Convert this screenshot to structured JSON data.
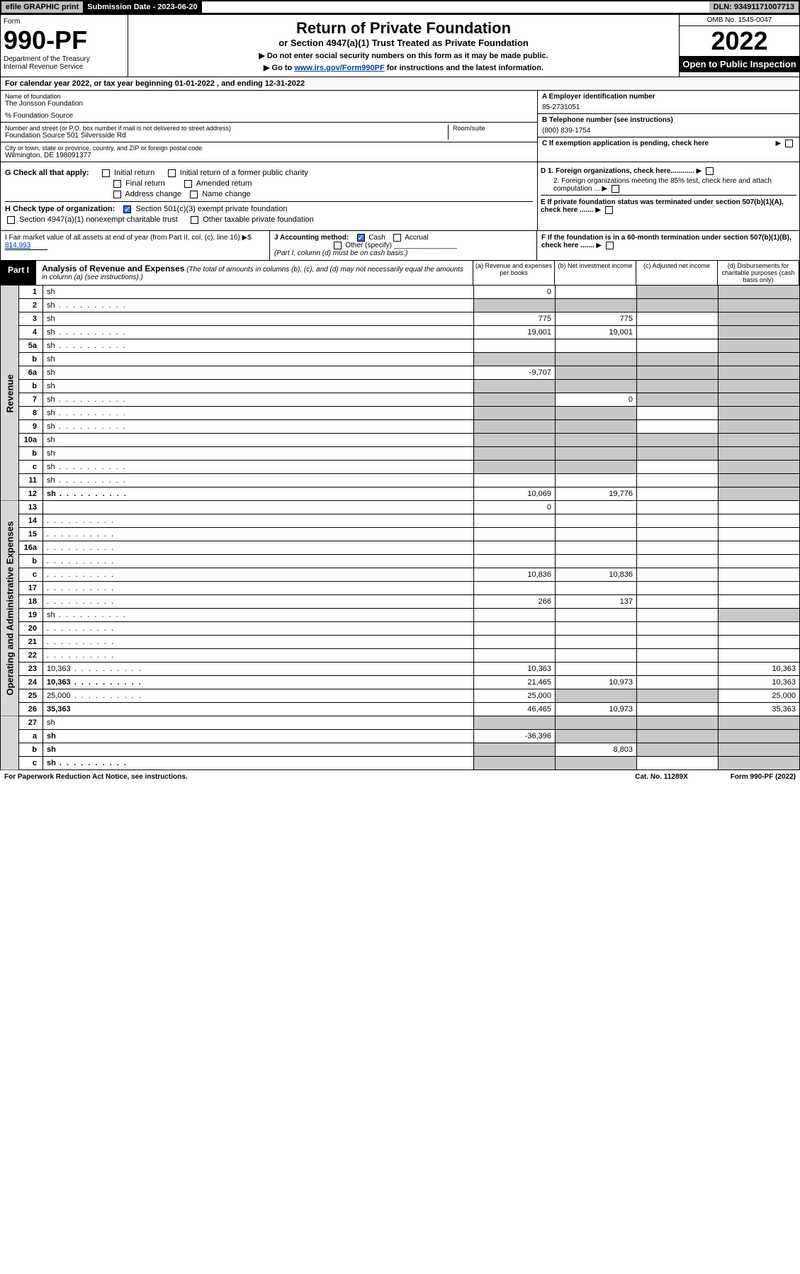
{
  "topbar": {
    "efile": "efile GRAPHIC print",
    "submission": "Submission Date - 2023-06-20",
    "dln": "DLN: 93491171007713"
  },
  "header": {
    "form_label": "Form",
    "form_no": "990-PF",
    "dept": "Department of the Treasury",
    "irs": "Internal Revenue Service",
    "title": "Return of Private Foundation",
    "subtitle": "or Section 4947(a)(1) Trust Treated as Private Foundation",
    "note1": "▶ Do not enter social security numbers on this form as it may be made public.",
    "note2_pre": "▶ Go to ",
    "note2_link": "www.irs.gov/Form990PF",
    "note2_post": " for instructions and the latest information.",
    "omb": "OMB No. 1545-0047",
    "year": "2022",
    "open": "Open to Public Inspection"
  },
  "calyear": "For calendar year 2022, or tax year beginning 01-01-2022             , and ending 12-31-2022",
  "info": {
    "name_lbl": "Name of foundation",
    "name": "The Jonsson Foundation",
    "care": "% Foundation Source",
    "addr_lbl": "Number and street (or P.O. box number if mail is not delivered to street address)",
    "addr": "Foundation Source 501 Silversside Rd",
    "room_lbl": "Room/suite",
    "city_lbl": "City or town, state or province, country, and ZIP or foreign postal code",
    "city": "Wilmington, DE  198091377",
    "a_lbl": "A Employer identification number",
    "a": "85-2731051",
    "b_lbl": "B Telephone number (see instructions)",
    "b": "(800) 839-1754",
    "c": "C If exemption application is pending, check here"
  },
  "g": {
    "label": "G Check all that apply:",
    "initial": "Initial return",
    "initial_pub": "Initial return of a former public charity",
    "final": "Final return",
    "amended": "Amended return",
    "addr_chg": "Address change",
    "name_chg": "Name change"
  },
  "h": {
    "label": "H Check type of organization:",
    "501c3": "Section 501(c)(3) exempt private foundation",
    "4947": "Section 4947(a)(1) nonexempt charitable trust",
    "other_tax": "Other taxable private foundation"
  },
  "d": {
    "d1": "D 1. Foreign organizations, check here............",
    "d2": "2. Foreign organizations meeting the 85% test, check here and attach computation ...",
    "e": "E  If private foundation status was terminated under section 507(b)(1)(A), check here .......",
    "f": "F  If the foundation is in a 60-month termination under section 507(b)(1)(B), check here ......."
  },
  "i": {
    "label": "I Fair market value of all assets at end of year (from Part II, col. (c), line 16) ▶$ ",
    "val": "814,993"
  },
  "j": {
    "label": "J Accounting method:",
    "cash": "Cash",
    "accrual": "Accrual",
    "other": "Other (specify)",
    "note": "(Part I, column (d) must be on cash basis.)"
  },
  "part1": {
    "label": "Part I",
    "title": "Analysis of Revenue and Expenses",
    "desc": " (The total of amounts in columns (b), (c), and (d) may not necessarily equal the amounts in column (a) (see instructions).)",
    "col_a": "(a)  Revenue and expenses per books",
    "col_b": "(b)  Net investment income",
    "col_c": "(c)  Adjusted net income",
    "col_d": "(d)  Disbursements for charitable purposes (cash basis only)"
  },
  "rev_label": "Revenue",
  "oae_label": "Operating and Administrative Expenses",
  "rows": [
    {
      "n": "1",
      "d": "sh",
      "a": "0",
      "b": "",
      "c": "sh"
    },
    {
      "n": "2",
      "d": "sh",
      "a": "sh",
      "b": "sh",
      "c": "sh",
      "dots": true
    },
    {
      "n": "3",
      "d": "sh",
      "a": "775",
      "b": "775",
      "c": ""
    },
    {
      "n": "4",
      "d": "sh",
      "a": "19,001",
      "b": "19,001",
      "c": "",
      "dots": true
    },
    {
      "n": "5a",
      "d": "sh",
      "a": "",
      "b": "",
      "c": "",
      "dots": true
    },
    {
      "n": "b",
      "d": "sh",
      "a": "sh",
      "b": "sh",
      "c": "sh"
    },
    {
      "n": "6a",
      "d": "sh",
      "a": "-9,707",
      "b": "sh",
      "c": "sh"
    },
    {
      "n": "b",
      "d": "sh",
      "a": "sh",
      "b": "sh",
      "c": "sh"
    },
    {
      "n": "7",
      "d": "sh",
      "a": "sh",
      "b": "0",
      "c": "sh",
      "dots": true
    },
    {
      "n": "8",
      "d": "sh",
      "a": "sh",
      "b": "sh",
      "c": "",
      "dots": true
    },
    {
      "n": "9",
      "d": "sh",
      "a": "sh",
      "b": "sh",
      "c": "",
      "dots": true
    },
    {
      "n": "10a",
      "d": "sh",
      "a": "sh",
      "b": "sh",
      "c": "sh"
    },
    {
      "n": "b",
      "d": "sh",
      "a": "sh",
      "b": "sh",
      "c": "sh"
    },
    {
      "n": "c",
      "d": "sh",
      "a": "sh",
      "b": "sh",
      "c": "",
      "dots": true
    },
    {
      "n": "11",
      "d": "sh",
      "a": "",
      "b": "",
      "c": "",
      "dots": true
    },
    {
      "n": "12",
      "d": "sh",
      "a": "10,069",
      "b": "19,776",
      "c": "",
      "bold": true,
      "dots": true
    }
  ],
  "exp_rows": [
    {
      "n": "13",
      "d": "",
      "a": "0",
      "b": "",
      "c": ""
    },
    {
      "n": "14",
      "d": "",
      "a": "",
      "b": "",
      "c": "",
      "dots": true
    },
    {
      "n": "15",
      "d": "",
      "a": "",
      "b": "",
      "c": "",
      "dots": true
    },
    {
      "n": "16a",
      "d": "",
      "a": "",
      "b": "",
      "c": "",
      "dots": true
    },
    {
      "n": "b",
      "d": "",
      "a": "",
      "b": "",
      "c": "",
      "dots": true
    },
    {
      "n": "c",
      "d": "",
      "a": "10,836",
      "b": "10,836",
      "c": "",
      "dots": true
    },
    {
      "n": "17",
      "d": "",
      "a": "",
      "b": "",
      "c": "",
      "dots": true
    },
    {
      "n": "18",
      "d": "",
      "a": "266",
      "b": "137",
      "c": "",
      "dots": true
    },
    {
      "n": "19",
      "d": "sh",
      "a": "",
      "b": "",
      "c": "",
      "dots": true
    },
    {
      "n": "20",
      "d": "",
      "a": "",
      "b": "",
      "c": "",
      "dots": true
    },
    {
      "n": "21",
      "d": "",
      "a": "",
      "b": "",
      "c": "",
      "dots": true
    },
    {
      "n": "22",
      "d": "",
      "a": "",
      "b": "",
      "c": "",
      "dots": true
    },
    {
      "n": "23",
      "d": "10,363",
      "a": "10,363",
      "b": "",
      "c": "",
      "dots": true
    },
    {
      "n": "24",
      "d": "10,363",
      "a": "21,465",
      "b": "10,973",
      "c": "",
      "bold": true,
      "dots": true
    },
    {
      "n": "25",
      "d": "25,000",
      "a": "25,000",
      "b": "sh",
      "c": "sh",
      "dots": true
    },
    {
      "n": "26",
      "d": "35,363",
      "a": "46,465",
      "b": "10,973",
      "c": "",
      "bold": true
    }
  ],
  "sub_rows": [
    {
      "n": "27",
      "d": "sh",
      "a": "sh",
      "b": "sh",
      "c": "sh"
    },
    {
      "n": "a",
      "d": "sh",
      "a": "-36,396",
      "b": "sh",
      "c": "sh",
      "bold": true
    },
    {
      "n": "b",
      "d": "sh",
      "a": "sh",
      "b": "8,803",
      "c": "sh",
      "bold": true
    },
    {
      "n": "c",
      "d": "sh",
      "a": "sh",
      "b": "sh",
      "c": "",
      "bold": true,
      "dots": true
    }
  ],
  "footer": {
    "left": "For Paperwork Reduction Act Notice, see instructions.",
    "mid": "Cat. No. 11289X",
    "right": "Form 990-PF (2022)"
  }
}
